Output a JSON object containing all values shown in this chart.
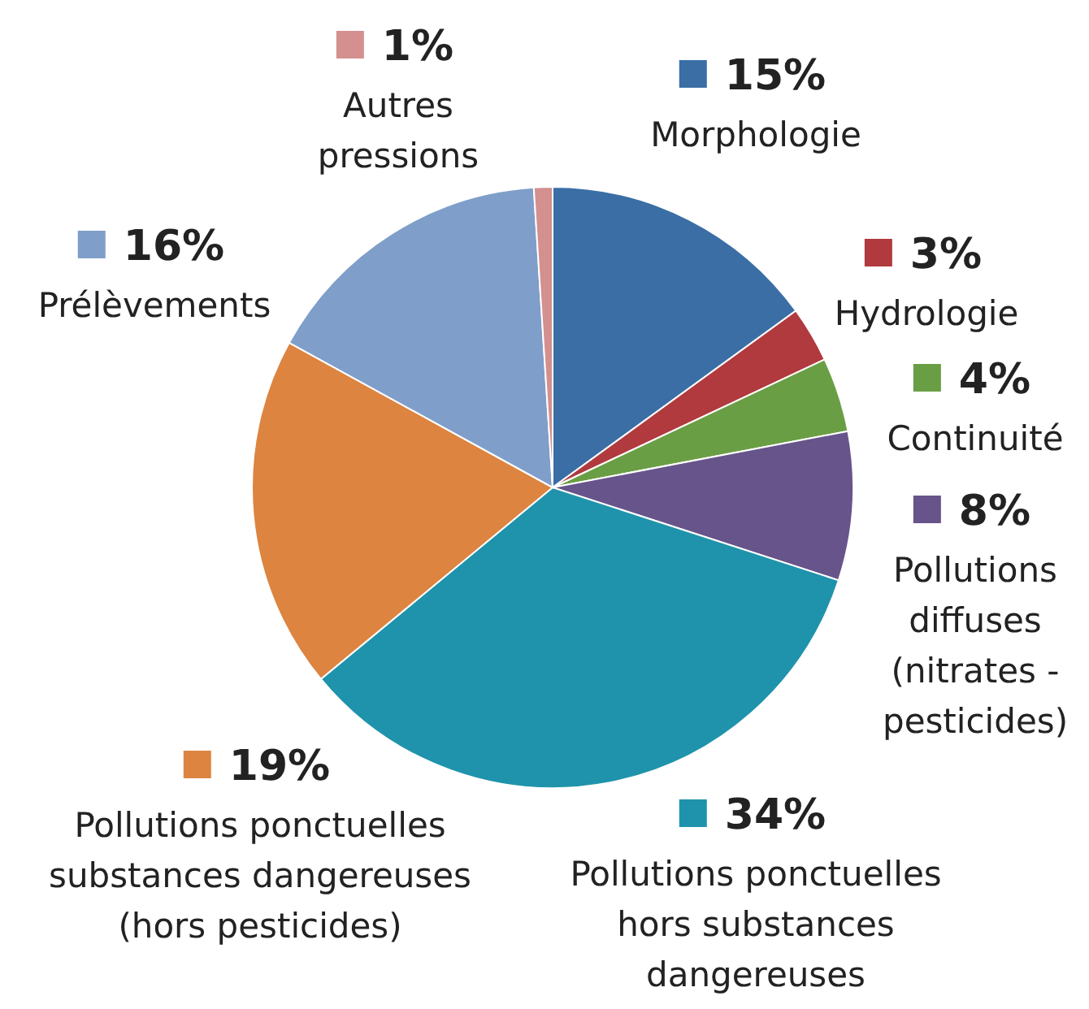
{
  "chart_data": {
    "type": "pie",
    "categories": [
      "Morphologie",
      "Hydrologie",
      "Continuité",
      "Pollutions diffuses (nitrates - pesticides)",
      "Pollutions ponctuelles hors substances dangereuses",
      "Pollutions ponctuelles substances dangereuses (hors pesticides)",
      "Prélèvements",
      "Autres pressions"
    ],
    "values": [
      15,
      3,
      4,
      8,
      34,
      19,
      16,
      1
    ],
    "legend": "right",
    "value_labels": [
      "15%",
      "3%",
      "4%",
      "8%",
      "34%",
      "19%",
      "16%",
      "1%"
    ],
    "colors": [
      "#3a6ea5",
      "#b03a3e",
      "#6a9e45",
      "#67548a",
      "#1f93ab",
      "#dc8440",
      "#7f9ec9",
      "#d48f8f"
    ]
  }
}
